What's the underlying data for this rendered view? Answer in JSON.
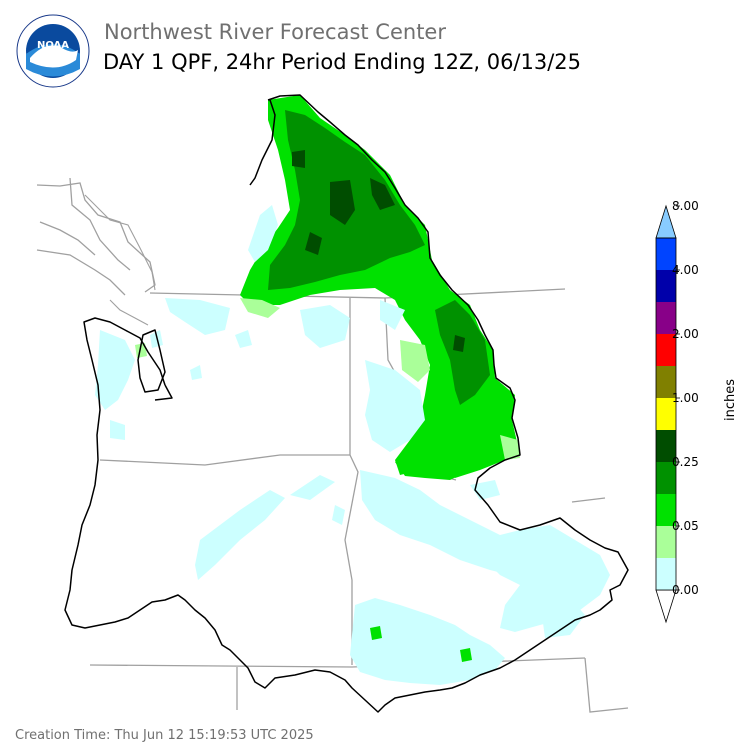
{
  "header": {
    "title": "Northwest River Forecast Center",
    "subtitle": "DAY 1 QPF, 24hr Period Ending 12Z, 06/13/25"
  },
  "logo": {
    "text": "NOAA",
    "ring_text": "NATIONAL OCEANIC AND ATMOSPHERIC ADMINISTRATION · U.S. DEPARTMENT OF COMMERCE"
  },
  "footer": {
    "creation_time": "Creation Time: Thu Jun 12 15:19:53 UTC 2025"
  },
  "legend": {
    "unit_label": "inches",
    "tick_labels": [
      "0.00",
      "0.05",
      "0.25",
      "1.00",
      "2.00",
      "4.00",
      "8.00"
    ],
    "bins": [
      {
        "color": "#ffffff"
      },
      {
        "color": "#ccffff"
      },
      {
        "color": "#aaff99"
      },
      {
        "color": "#00e100"
      },
      {
        "color": "#009100"
      },
      {
        "color": "#004d00"
      },
      {
        "color": "#ffff00"
      },
      {
        "color": "#808000"
      },
      {
        "color": "#ff0000"
      },
      {
        "color": "#880088"
      },
      {
        "color": "#0000aa"
      },
      {
        "color": "#0044ff"
      },
      {
        "color": "#88ccff"
      }
    ]
  },
  "colors": {
    "light_cyan": "#ccffff",
    "light_green": "#aaff99",
    "green": "#00e100",
    "mid_green": "#009100",
    "dark_green": "#004d00",
    "boundary": "#000000",
    "state_lines": "#a0a0a0"
  }
}
